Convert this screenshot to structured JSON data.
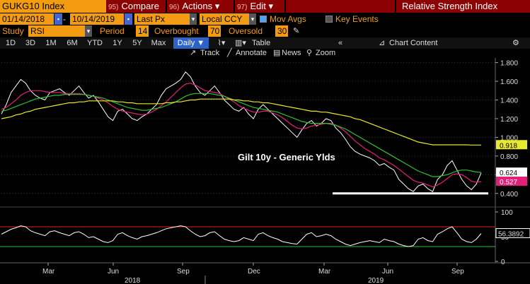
{
  "header": {
    "ticker": "GUKG10 Index",
    "menus": [
      {
        "num": "95)",
        "label": "Compare",
        "caret": "▾"
      },
      {
        "num": "96)",
        "label": "Actions",
        "caret": "▾"
      },
      {
        "num": "97)",
        "label": "Edit",
        "caret": "▾"
      }
    ],
    "study_title": "Relative Strength Index"
  },
  "controls": {
    "start_date": "01/14/2018",
    "end_date": "10/14/2019",
    "price_type": "Last Px",
    "currency": "Local CCY",
    "mov_avgs": "Mov Avgs",
    "key_events": "Key Events"
  },
  "study_row": {
    "study_label": "Study",
    "study_value": "RSI",
    "period_label": "Period",
    "period_value": "14",
    "overbought_label": "Overbought",
    "overbought_value": "70",
    "oversold_label": "Oversold",
    "oversold_value": "30"
  },
  "toolbar": {
    "timeframes": [
      "1D",
      "3D",
      "1M",
      "6M",
      "YTD",
      "1Y",
      "5Y",
      "Max"
    ],
    "frequency": "Daily ▼",
    "table": "Table",
    "chart_content": "Chart Content",
    "track": "Track",
    "annotate": "Annotate",
    "news": "News",
    "zoom": "Zoom"
  },
  "chart_data": {
    "type": "line",
    "annotation": "Gilt 10y - Generic Ylds",
    "x_ticks": [
      "Mar",
      "Jun",
      "Sep",
      "Dec",
      "Mar",
      "Jun",
      "Sep"
    ],
    "years": [
      "2018",
      "2019"
    ],
    "ylim": [
      0.3,
      1.85
    ],
    "yticks": [
      "1.800",
      "1.600",
      "1.400",
      "1.200",
      "1.000",
      "0.800",
      "0.600",
      "0.400"
    ],
    "last_labels": [
      {
        "text": "0.918",
        "color": "#e8e830"
      },
      {
        "text": "0.624",
        "color": "#ffffff"
      },
      {
        "text": "0.527",
        "color": "#e0207a"
      }
    ],
    "series": [
      {
        "color": "#ffffff",
        "values": [
          1.25,
          1.35,
          1.48,
          1.55,
          1.62,
          1.58,
          1.5,
          1.45,
          1.42,
          1.4,
          1.48,
          1.5,
          1.52,
          1.48,
          1.45,
          1.5,
          1.55,
          1.48,
          1.42,
          1.45,
          1.38,
          1.3,
          1.22,
          1.18,
          1.28,
          1.3,
          1.25,
          1.2,
          1.18,
          1.22,
          1.25,
          1.3,
          1.35,
          1.45,
          1.52,
          1.55,
          1.58,
          1.62,
          1.7,
          1.65,
          1.55,
          1.48,
          1.45,
          1.5,
          1.55,
          1.48,
          1.4,
          1.35,
          1.3,
          1.28,
          1.32,
          1.25,
          1.2,
          1.3,
          1.35,
          1.3,
          1.25,
          1.2,
          1.15,
          1.1,
          1.05,
          1.0,
          1.08,
          1.15,
          1.18,
          1.12,
          1.15,
          1.2,
          1.18,
          1.1,
          1.05,
          0.98,
          0.9,
          0.85,
          0.82,
          0.8,
          0.78,
          0.75,
          0.7,
          0.72,
          0.68,
          0.65,
          0.55,
          0.5,
          0.45,
          0.42,
          0.48,
          0.5,
          0.45,
          0.42,
          0.55,
          0.6,
          0.7,
          0.75,
          0.65,
          0.55,
          0.48,
          0.44,
          0.5,
          0.62
        ]
      },
      {
        "color": "#e0207a",
        "values": [
          1.3,
          1.32,
          1.36,
          1.4,
          1.45,
          1.48,
          1.5,
          1.5,
          1.5,
          1.49,
          1.48,
          1.48,
          1.48,
          1.47,
          1.47,
          1.47,
          1.47,
          1.46,
          1.45,
          1.44,
          1.42,
          1.4,
          1.37,
          1.33,
          1.3,
          1.28,
          1.27,
          1.26,
          1.25,
          1.24,
          1.25,
          1.27,
          1.3,
          1.34,
          1.38,
          1.43,
          1.48,
          1.53,
          1.57,
          1.58,
          1.56,
          1.53,
          1.5,
          1.49,
          1.48,
          1.47,
          1.44,
          1.41,
          1.38,
          1.34,
          1.31,
          1.29,
          1.27,
          1.27,
          1.28,
          1.28,
          1.26,
          1.24,
          1.21,
          1.17,
          1.13,
          1.1,
          1.09,
          1.1,
          1.12,
          1.13,
          1.14,
          1.15,
          1.15,
          1.13,
          1.1,
          1.06,
          1.01,
          0.96,
          0.92,
          0.88,
          0.85,
          0.82,
          0.78,
          0.76,
          0.73,
          0.7,
          0.66,
          0.62,
          0.58,
          0.54,
          0.52,
          0.51,
          0.49,
          0.47,
          0.49,
          0.52,
          0.56,
          0.6,
          0.61,
          0.6,
          0.57,
          0.53,
          0.52,
          0.527
        ]
      },
      {
        "color": "#30c030",
        "values": [
          1.28,
          1.29,
          1.31,
          1.33,
          1.35,
          1.37,
          1.39,
          1.41,
          1.42,
          1.43,
          1.44,
          1.45,
          1.45,
          1.46,
          1.46,
          1.46,
          1.46,
          1.46,
          1.45,
          1.44,
          1.43,
          1.42,
          1.4,
          1.38,
          1.36,
          1.34,
          1.32,
          1.31,
          1.3,
          1.29,
          1.29,
          1.3,
          1.31,
          1.32,
          1.34,
          1.36,
          1.38,
          1.41,
          1.44,
          1.46,
          1.47,
          1.47,
          1.47,
          1.47,
          1.46,
          1.45,
          1.44,
          1.42,
          1.4,
          1.38,
          1.36,
          1.34,
          1.32,
          1.31,
          1.3,
          1.29,
          1.28,
          1.27,
          1.25,
          1.23,
          1.21,
          1.19,
          1.17,
          1.16,
          1.15,
          1.15,
          1.15,
          1.15,
          1.14,
          1.13,
          1.11,
          1.09,
          1.06,
          1.03,
          1.0,
          0.97,
          0.94,
          0.91,
          0.88,
          0.85,
          0.82,
          0.79,
          0.76,
          0.73,
          0.7,
          0.67,
          0.64,
          0.62,
          0.6,
          0.58,
          0.58,
          0.59,
          0.6,
          0.62,
          0.64,
          0.65,
          0.65,
          0.64,
          0.63,
          0.624
        ]
      },
      {
        "color": "#e8e830",
        "values": [
          1.2,
          1.21,
          1.22,
          1.24,
          1.25,
          1.27,
          1.28,
          1.3,
          1.31,
          1.32,
          1.33,
          1.34,
          1.35,
          1.36,
          1.37,
          1.37,
          1.38,
          1.38,
          1.39,
          1.39,
          1.39,
          1.39,
          1.39,
          1.39,
          1.38,
          1.38,
          1.37,
          1.37,
          1.36,
          1.36,
          1.36,
          1.36,
          1.36,
          1.36,
          1.37,
          1.37,
          1.38,
          1.38,
          1.39,
          1.4,
          1.4,
          1.41,
          1.41,
          1.41,
          1.41,
          1.41,
          1.41,
          1.41,
          1.4,
          1.4,
          1.39,
          1.39,
          1.38,
          1.38,
          1.37,
          1.37,
          1.36,
          1.35,
          1.34,
          1.33,
          1.32,
          1.31,
          1.3,
          1.29,
          1.28,
          1.28,
          1.27,
          1.27,
          1.26,
          1.25,
          1.24,
          1.23,
          1.22,
          1.2,
          1.19,
          1.17,
          1.15,
          1.13,
          1.11,
          1.09,
          1.07,
          1.05,
          1.03,
          1.01,
          0.99,
          0.97,
          0.95,
          0.94,
          0.93,
          0.92,
          0.92,
          0.92,
          0.92,
          0.92,
          0.92,
          0.92,
          0.92,
          0.918,
          0.918,
          0.918
        ]
      }
    ],
    "support_level": 0.4,
    "rsi": {
      "ylim": [
        0,
        100
      ],
      "yticks": [
        "100",
        "50",
        "0"
      ],
      "overbought": 70,
      "oversold": 30,
      "last": "56.3892",
      "values": [
        55,
        60,
        65,
        68,
        72,
        70,
        62,
        58,
        55,
        52,
        60,
        62,
        58,
        55,
        52,
        58,
        60,
        55,
        48,
        50,
        45,
        40,
        38,
        42,
        55,
        58,
        52,
        48,
        45,
        50,
        52,
        55,
        58,
        62,
        66,
        68,
        70,
        72,
        70,
        62,
        55,
        50,
        52,
        58,
        60,
        52,
        45,
        42,
        40,
        42,
        48,
        45,
        42,
        55,
        58,
        52,
        48,
        45,
        40,
        38,
        36,
        35,
        45,
        55,
        58,
        50,
        52,
        55,
        52,
        45,
        40,
        35,
        32,
        35,
        38,
        40,
        42,
        40,
        38,
        45,
        42,
        40,
        35,
        32,
        30,
        32,
        45,
        48,
        42,
        40,
        55,
        60,
        66,
        70,
        58,
        45,
        40,
        38,
        45,
        56.3892
      ]
    }
  }
}
